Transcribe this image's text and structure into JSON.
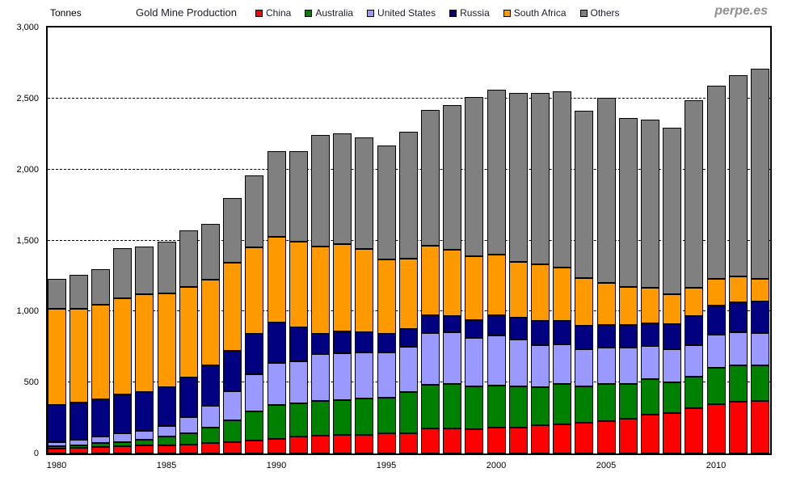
{
  "header": {
    "units_label": "Tonnes",
    "title": "Gold Mine Production",
    "watermark": "perpe.es"
  },
  "chart_data": {
    "type": "bar",
    "stacked": true,
    "title": "Gold Mine Production",
    "ylabel": "Tonnes",
    "ylim": [
      0,
      3000
    ],
    "grid": "horizontal-dashed",
    "legend_position": "top",
    "ytick_values": [
      0,
      500,
      1000,
      1500,
      2000,
      2500,
      3000
    ],
    "ytick_labels": [
      "0",
      "500",
      "1,000",
      "1,500",
      "2,000",
      "2,500",
      "3,000"
    ],
    "xtick_years": [
      1980,
      1985,
      1990,
      1995,
      2000,
      2005,
      2010
    ],
    "categories": [
      1980,
      1981,
      1982,
      1983,
      1984,
      1985,
      1986,
      1987,
      1988,
      1989,
      1990,
      1991,
      1992,
      1993,
      1994,
      1995,
      1996,
      1997,
      1998,
      1999,
      2000,
      2001,
      2002,
      2003,
      2004,
      2005,
      2006,
      2007,
      2008,
      2009,
      2010,
      2011,
      2012
    ],
    "series": [
      {
        "name": "China",
        "color": "#FF0000",
        "values": [
          35,
          38,
          45,
          50,
          55,
          58,
          65,
          73,
          78,
          90,
          100,
          120,
          125,
          130,
          130,
          140,
          145,
          175,
          178,
          173,
          180,
          185,
          202,
          205,
          215,
          225,
          245,
          275,
          285,
          320,
          345,
          362,
          370
        ]
      },
      {
        "name": "Australia",
        "color": "#008000",
        "values": [
          17,
          18,
          27,
          31,
          39,
          59,
          75,
          111,
          157,
          204,
          244,
          234,
          243,
          247,
          255,
          254,
          290,
          311,
          310,
          300,
          296,
          285,
          264,
          284,
          259,
          263,
          247,
          246,
          215,
          222,
          261,
          258,
          250
        ]
      },
      {
        "name": "United States",
        "color": "#9999FF",
        "values": [
          30,
          43,
          45,
          63,
          66,
          79,
          118,
          154,
          201,
          266,
          294,
          296,
          330,
          331,
          327,
          317,
          318,
          362,
          366,
          341,
          353,
          335,
          298,
          277,
          258,
          256,
          252,
          238,
          233,
          223,
          231,
          234,
          230
        ]
      },
      {
        "name": "Russia",
        "color": "#000080",
        "values": [
          260,
          260,
          265,
          270,
          270,
          270,
          275,
          280,
          285,
          285,
          285,
          240,
          146,
          149,
          142,
          132,
          123,
          125,
          115,
          126,
          143,
          152,
          168,
          170,
          169,
          163,
          159,
          157,
          176,
          205,
          203,
          212,
          218
        ]
      },
      {
        "name": "South Africa",
        "color": "#FF9900",
        "values": [
          675,
          658,
          664,
          680,
          690,
          660,
          640,
          607,
          621,
          608,
          605,
          601,
          614,
          620,
          584,
          522,
          495,
          490,
          464,
          450,
          428,
          394,
          398,
          373,
          337,
          294,
          272,
          252,
          213,
          198,
          189,
          181,
          160
        ]
      },
      {
        "name": "Others",
        "color": "#808080",
        "values": [
          213,
          243,
          254,
          354,
          340,
          367,
          400,
          390,
          455,
          507,
          600,
          637,
          783,
          775,
          788,
          804,
          892,
          955,
          1023,
          1123,
          1160,
          1188,
          1209,
          1243,
          1176,
          1304,
          1188,
          1184,
          1173,
          1322,
          1363,
          1418,
          1479
        ]
      }
    ],
    "totals": [
      1230,
      1260,
      1300,
      1448,
      1460,
      1493,
      1573,
      1615,
      1797,
      1960,
      2128,
      2128,
      2241,
      2252,
      2226,
      2169,
      2263,
      2418,
      2456,
      2513,
      2560,
      2539,
      2539,
      2552,
      2414,
      2505,
      2363,
      2352,
      2295,
      2490,
      2592,
      2665,
      2707
    ]
  }
}
